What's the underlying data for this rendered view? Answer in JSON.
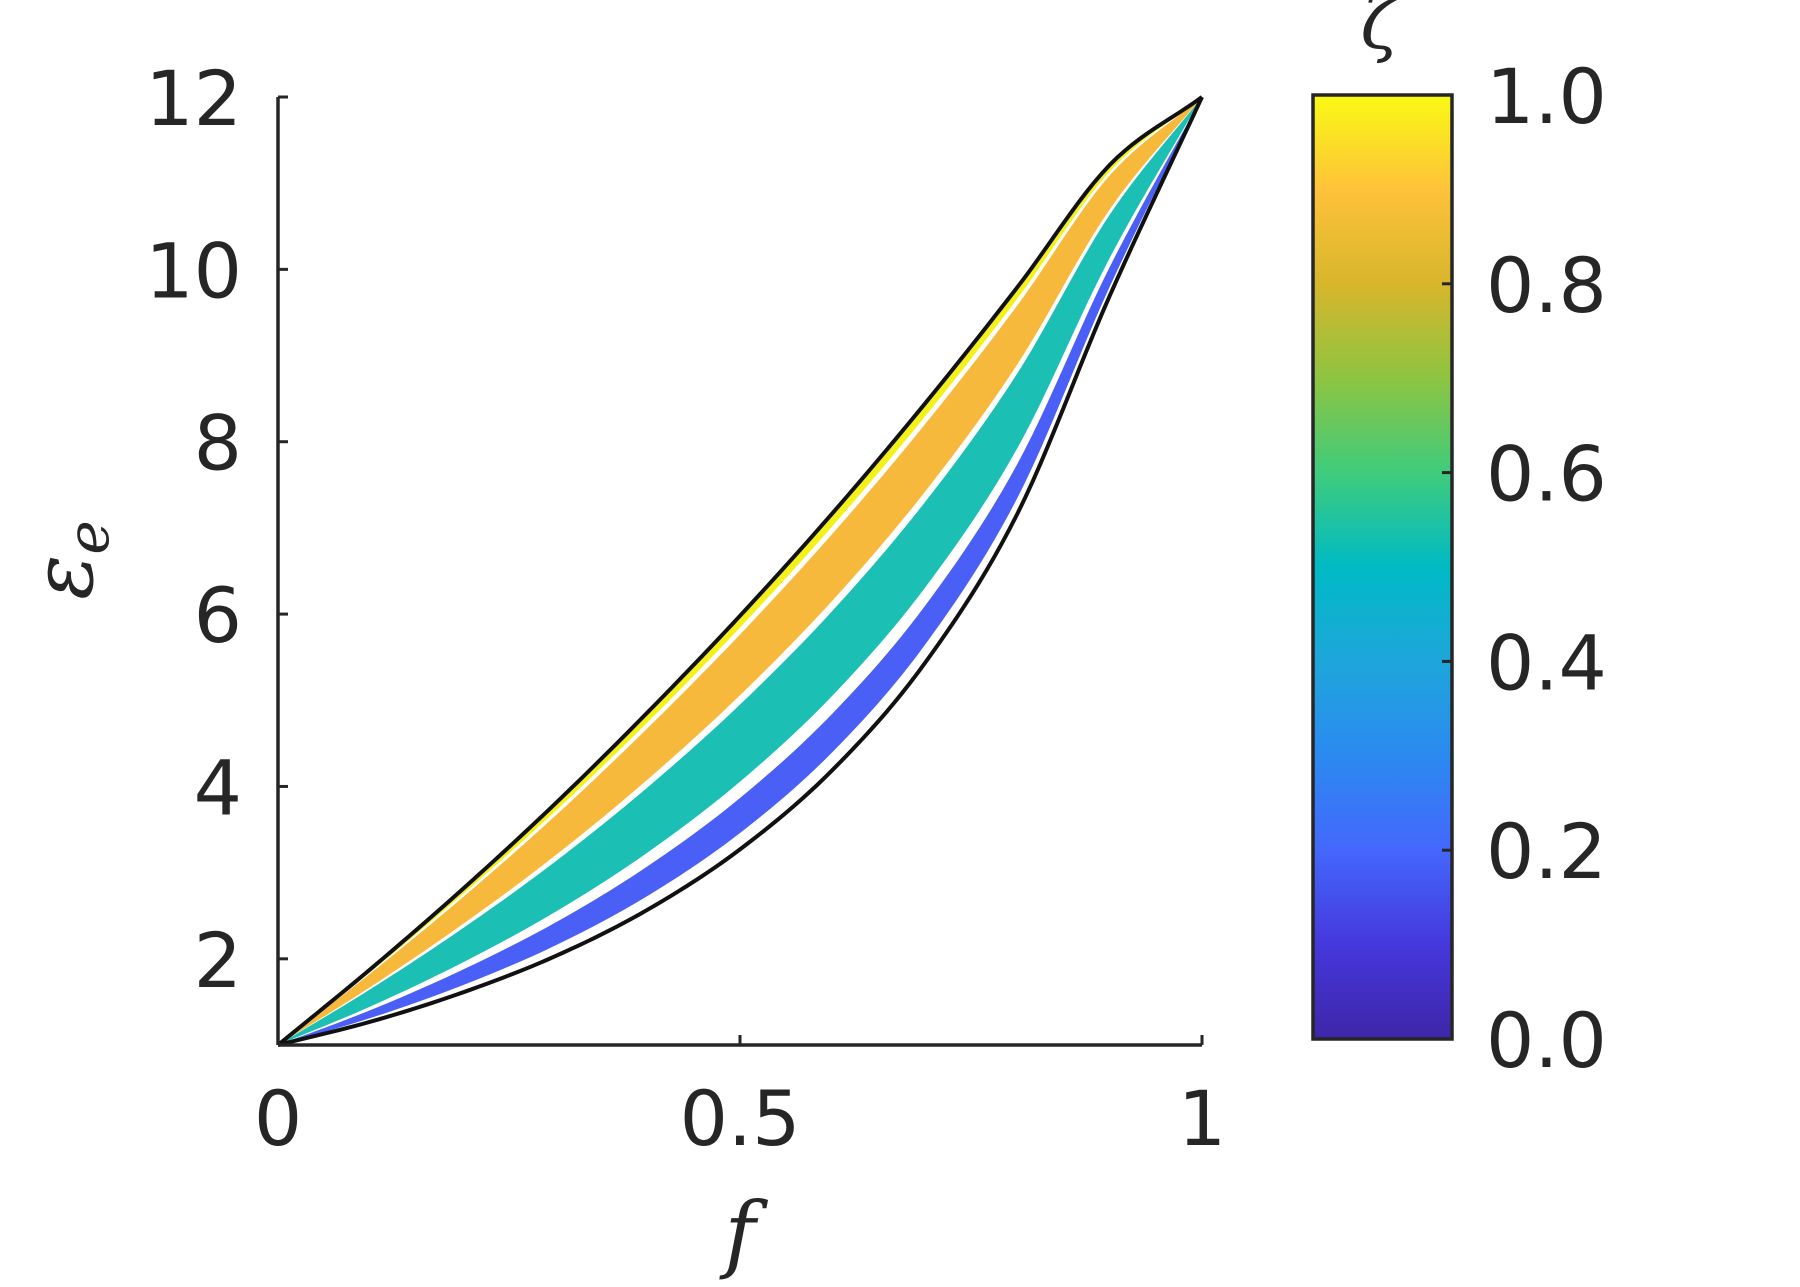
{
  "chart_data": {
    "type": "area",
    "xlabel": "f",
    "ylabel": "ε",
    "ylabel_sub": "e",
    "xlim": [
      0,
      1
    ],
    "ylim": [
      1,
      12
    ],
    "xticks": [
      0,
      0.5,
      1
    ],
    "xtick_labels": [
      "0",
      "0.5",
      "1"
    ],
    "yticks": [
      2,
      4,
      6,
      8,
      10,
      12
    ],
    "ytick_labels": [
      "2",
      "4",
      "6",
      "8",
      "10",
      "12"
    ],
    "grid": false,
    "endpoints": {
      "eps_matrix": 1,
      "eps_inclusion": 12
    },
    "bounds": {
      "x": [
        0,
        0.1,
        0.2,
        0.3,
        0.4,
        0.5,
        0.6,
        0.7,
        0.8,
        0.9,
        1.0
      ],
      "upper": [
        1.0,
        1.88,
        2.81,
        3.8,
        4.86,
        5.98,
        7.17,
        8.44,
        9.79,
        11.21,
        12.0
      ],
      "lower": [
        1.0,
        1.27,
        1.61,
        2.03,
        2.57,
        3.27,
        4.19,
        5.43,
        7.16,
        9.69,
        12.0
      ]
    },
    "bands": [
      {
        "zeta_min": 0.0,
        "zeta_max": 0.01,
        "color": "#3e26a8"
      },
      {
        "zeta_min": 0.07,
        "zeta_max": 0.22,
        "color": "#4a5ff5"
      },
      {
        "zeta_min": 0.29,
        "zeta_max": 0.62,
        "color": "#1bbfb4"
      },
      {
        "zeta_min": 0.66,
        "zeta_max": 0.92,
        "color": "#f7b93c"
      },
      {
        "zeta_min": 0.95,
        "zeta_max": 0.99,
        "color": "#f3f01a"
      }
    ],
    "colorbar": {
      "label": "ζ",
      "range": [
        0,
        1
      ],
      "ticks": [
        0.0,
        0.2,
        0.4,
        0.6,
        0.8,
        1.0
      ],
      "tick_labels": [
        "0.0",
        "0.2",
        "0.4",
        "0.6",
        "0.8",
        "1.0"
      ],
      "stops": [
        {
          "v": 0.0,
          "color": "#3e26a8"
        },
        {
          "v": 0.1,
          "color": "#4538dc"
        },
        {
          "v": 0.2,
          "color": "#4467fc"
        },
        {
          "v": 0.3,
          "color": "#2b8af0"
        },
        {
          "v": 0.4,
          "color": "#1ea6db"
        },
        {
          "v": 0.5,
          "color": "#00bac4"
        },
        {
          "v": 0.6,
          "color": "#3fcc7c"
        },
        {
          "v": 0.7,
          "color": "#8ec441"
        },
        {
          "v": 0.8,
          "color": "#d8b62c"
        },
        {
          "v": 0.9,
          "color": "#fec23a"
        },
        {
          "v": 1.0,
          "color": "#f9fa14"
        }
      ]
    }
  }
}
